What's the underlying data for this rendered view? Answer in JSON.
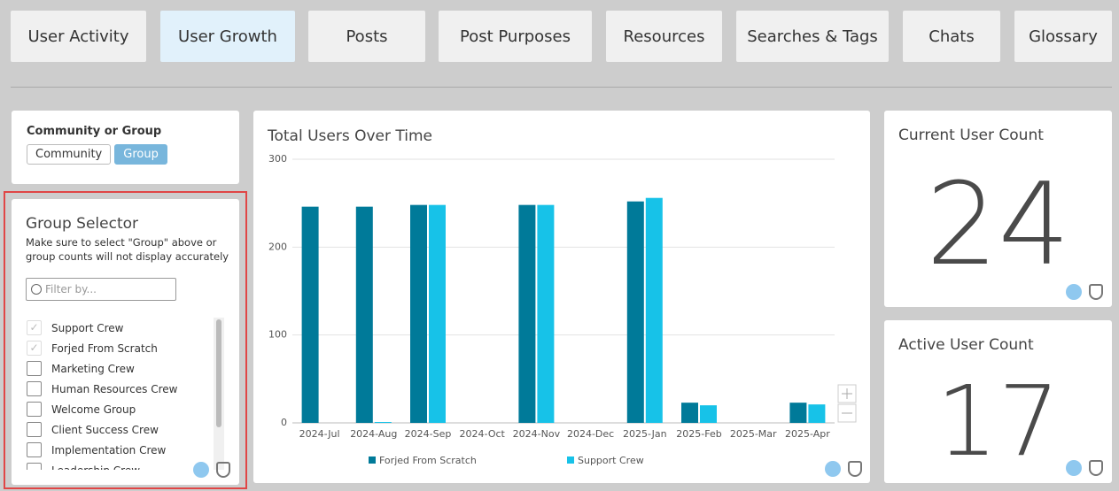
{
  "tabs": [
    "User Activity",
    "User Growth",
    "Posts",
    "Post Purposes",
    "Resources",
    "Searches & Tags",
    "Chats",
    "Glossary"
  ],
  "community_toggle": {
    "label": "Community or Group",
    "options": [
      "Community",
      "Group"
    ]
  },
  "group_selector": {
    "title": "Group Selector",
    "note": "Make sure to select \"Group\" above or group counts will not display accurately",
    "placeholder": "Filter by...",
    "items": [
      {
        "label": "Support Crew",
        "checked": true
      },
      {
        "label": "Forjed From Scratch",
        "checked": true
      },
      {
        "label": "Marketing Crew",
        "checked": false
      },
      {
        "label": "Human Resources Crew",
        "checked": false
      },
      {
        "label": "Welcome Group",
        "checked": false
      },
      {
        "label": "Client Success Crew",
        "checked": false
      },
      {
        "label": "Implementation Crew",
        "checked": false
      },
      {
        "label": "Leadership Crew",
        "checked": false
      }
    ]
  },
  "chart_data": {
    "type": "bar",
    "title": "Total Users Over Time",
    "categories": [
      "2024-Jul",
      "2024-Aug",
      "2024-Sep",
      "2024-Oct",
      "2024-Nov",
      "2024-Dec",
      "2025-Jan",
      "2025-Feb",
      "2025-Mar",
      "2025-Apr"
    ],
    "series": [
      {
        "name": "Forjed From Scratch",
        "color": "#007a99",
        "values": [
          246,
          246,
          248,
          null,
          248,
          null,
          252,
          23,
          null,
          23
        ]
      },
      {
        "name": "Support Crew",
        "color": "#17c2e8",
        "values": [
          null,
          1,
          248,
          null,
          248,
          null,
          256,
          20,
          null,
          21
        ]
      }
    ],
    "ylim": [
      0,
      300
    ],
    "yticks": [
      0,
      100,
      200,
      300
    ],
    "grid": true,
    "legend": "bottom"
  },
  "current_user_count": {
    "title": "Current User Count",
    "value": 24
  },
  "active_user_count": {
    "title": "Active User Count",
    "value": 17
  }
}
